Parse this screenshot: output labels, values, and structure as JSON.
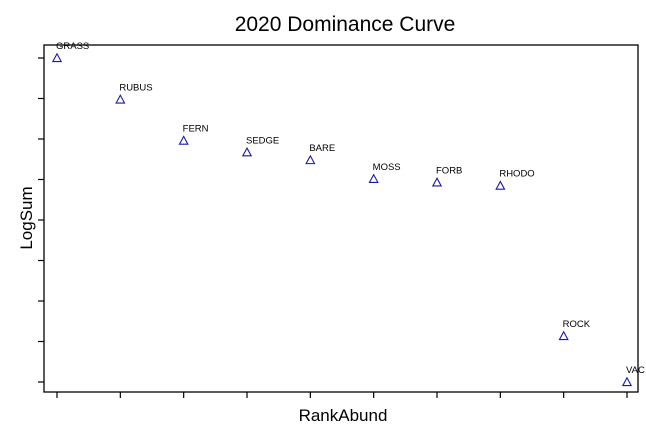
{
  "chart_data": {
    "type": "scatter",
    "title": "2020 Dominance Curve",
    "xlabel": "RankAbund",
    "ylabel": "LogSum",
    "xlim": [
      0.8,
      10.0
    ],
    "ylim": [
      0.0,
      1.0
    ],
    "x_ticks": [
      1,
      2,
      3,
      4,
      5,
      6,
      7,
      8,
      9,
      10
    ],
    "y_ticks": [
      0.0,
      0.125,
      0.25,
      0.375,
      0.5,
      0.625,
      0.75,
      0.875,
      1.0
    ],
    "marker": "triangle-open",
    "marker_color": "#1a1aa8",
    "grid": false,
    "points": [
      {
        "x": 1,
        "y": 1.0,
        "label": "GRASS"
      },
      {
        "x": 2,
        "y": 0.872,
        "label": "RUBUS"
      },
      {
        "x": 3,
        "y": 0.745,
        "label": "FERN"
      },
      {
        "x": 4,
        "y": 0.709,
        "label": "SEDGE"
      },
      {
        "x": 5,
        "y": 0.685,
        "label": "BARE"
      },
      {
        "x": 6,
        "y": 0.627,
        "label": "MOSS"
      },
      {
        "x": 7,
        "y": 0.616,
        "label": "FORB"
      },
      {
        "x": 8,
        "y": 0.606,
        "label": "RHODO"
      },
      {
        "x": 9,
        "y": 0.142,
        "label": "ROCK"
      },
      {
        "x": 10,
        "y": 0.0,
        "label": "VAC"
      }
    ]
  }
}
